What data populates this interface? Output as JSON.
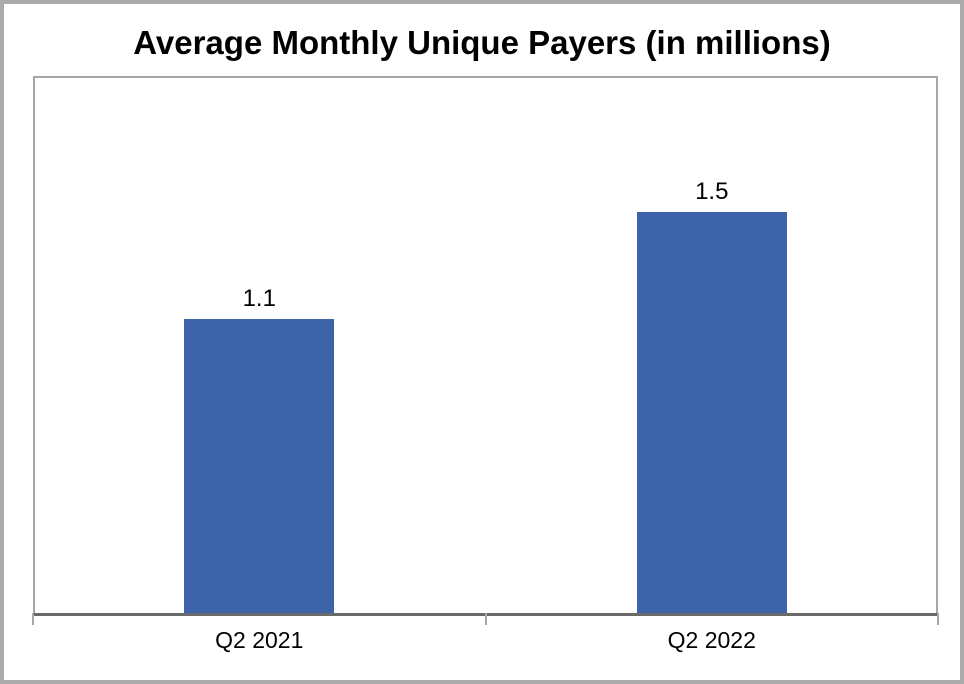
{
  "chart_data": {
    "type": "bar",
    "title": "Average Monthly Unique Payers (in millions)",
    "categories": [
      "Q2 2021",
      "Q2 2022"
    ],
    "values": [
      1.1,
      1.5
    ],
    "data_labels": [
      "1.1",
      "1.5"
    ],
    "xlabel": "",
    "ylabel": "",
    "ylim": [
      0,
      2
    ],
    "grid": false,
    "legend": false,
    "y_axis_visible": false,
    "colors": {
      "bar": "#3d64ab",
      "axis_line": "#696969",
      "plot_border": "#a6a6a6",
      "frame_border": "#ababab",
      "text": "#000000",
      "background": "#ffffff"
    }
  }
}
